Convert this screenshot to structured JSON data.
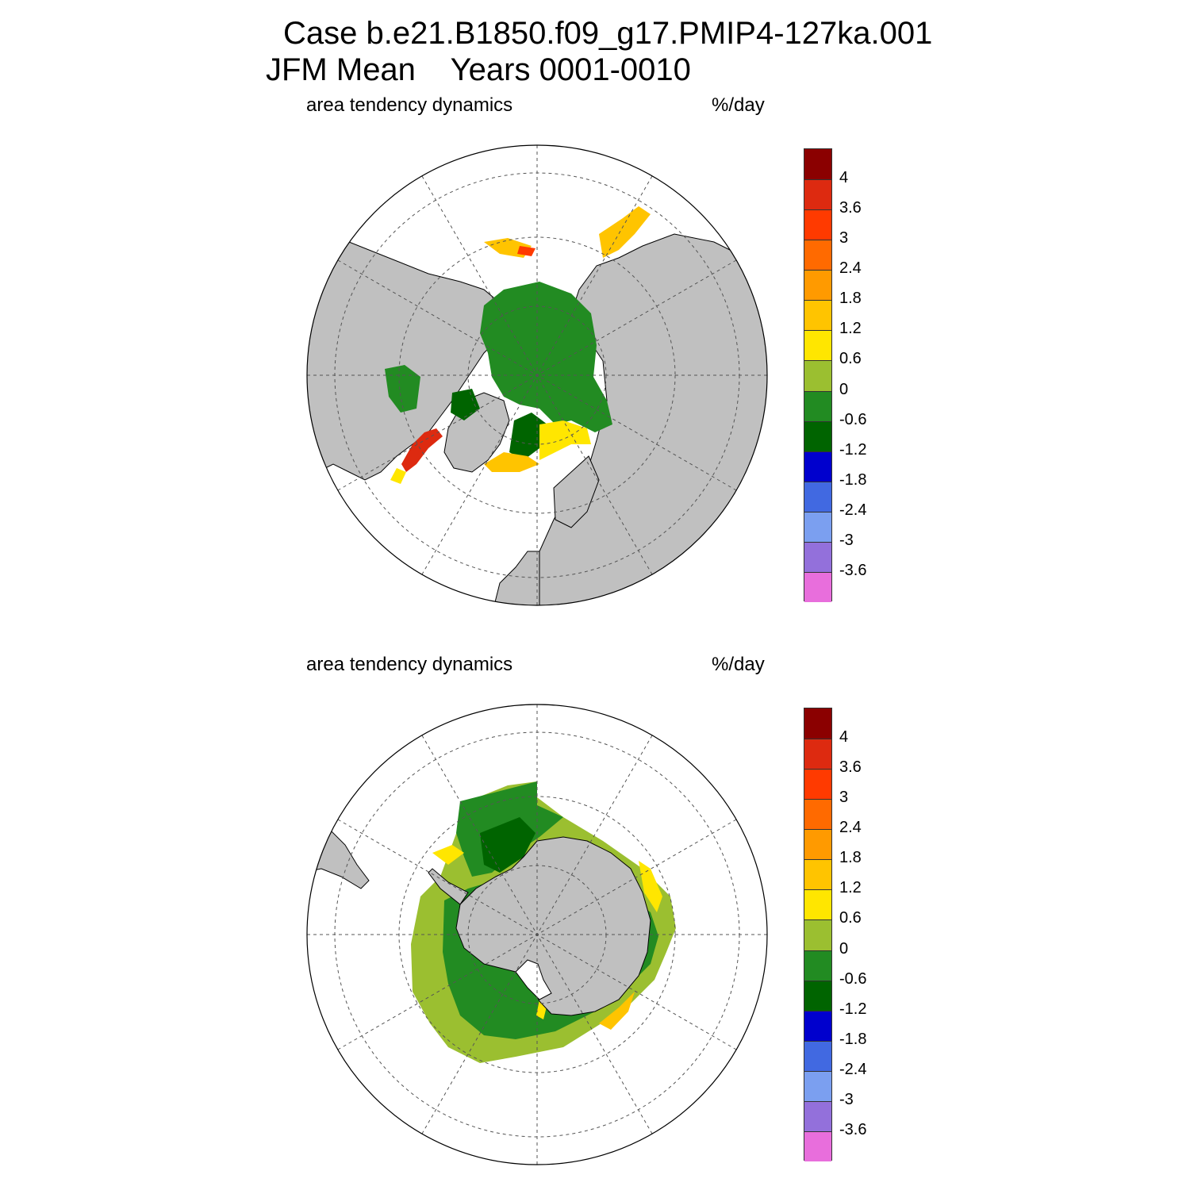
{
  "header": {
    "case_line": "Case b.e21.B1850.f09_g17.PMIP4-127ka.001",
    "season_line": "JFM Mean    Years 0001-0010"
  },
  "panels": [
    {
      "id": "nh",
      "field_label": "area tendency dynamics",
      "units": "%/day",
      "colorbar_labels": [
        "4",
        "3.6",
        "3",
        "2.4",
        "1.8",
        "1.2",
        "0.6",
        "0",
        "-0.6",
        "-1.2",
        "-1.8",
        "-2.4",
        "-3",
        "-3.6"
      ]
    },
    {
      "id": "sh",
      "field_label": "area tendency dynamics",
      "units": "%/day",
      "colorbar_labels": [
        "4",
        "3.6",
        "3",
        "2.4",
        "1.8",
        "1.2",
        "0.6",
        "0",
        "-0.6",
        "-1.2",
        "-1.8",
        "-2.4",
        "-3",
        "-3.6"
      ]
    }
  ],
  "colorbar_colors": [
    "#8b0000",
    "#dd2a10",
    "#ff3a00",
    "#ff6a00",
    "#ff9a00",
    "#ffc400",
    "#ffe600",
    "#9bbf30",
    "#228b22",
    "#006400",
    "#0000cd",
    "#4169e1",
    "#7b9ff0",
    "#9370db",
    "#e86edc"
  ],
  "colors": {
    "land": "#c0c0c0",
    "ocean": "#ffffff",
    "grid": "#555555"
  }
}
